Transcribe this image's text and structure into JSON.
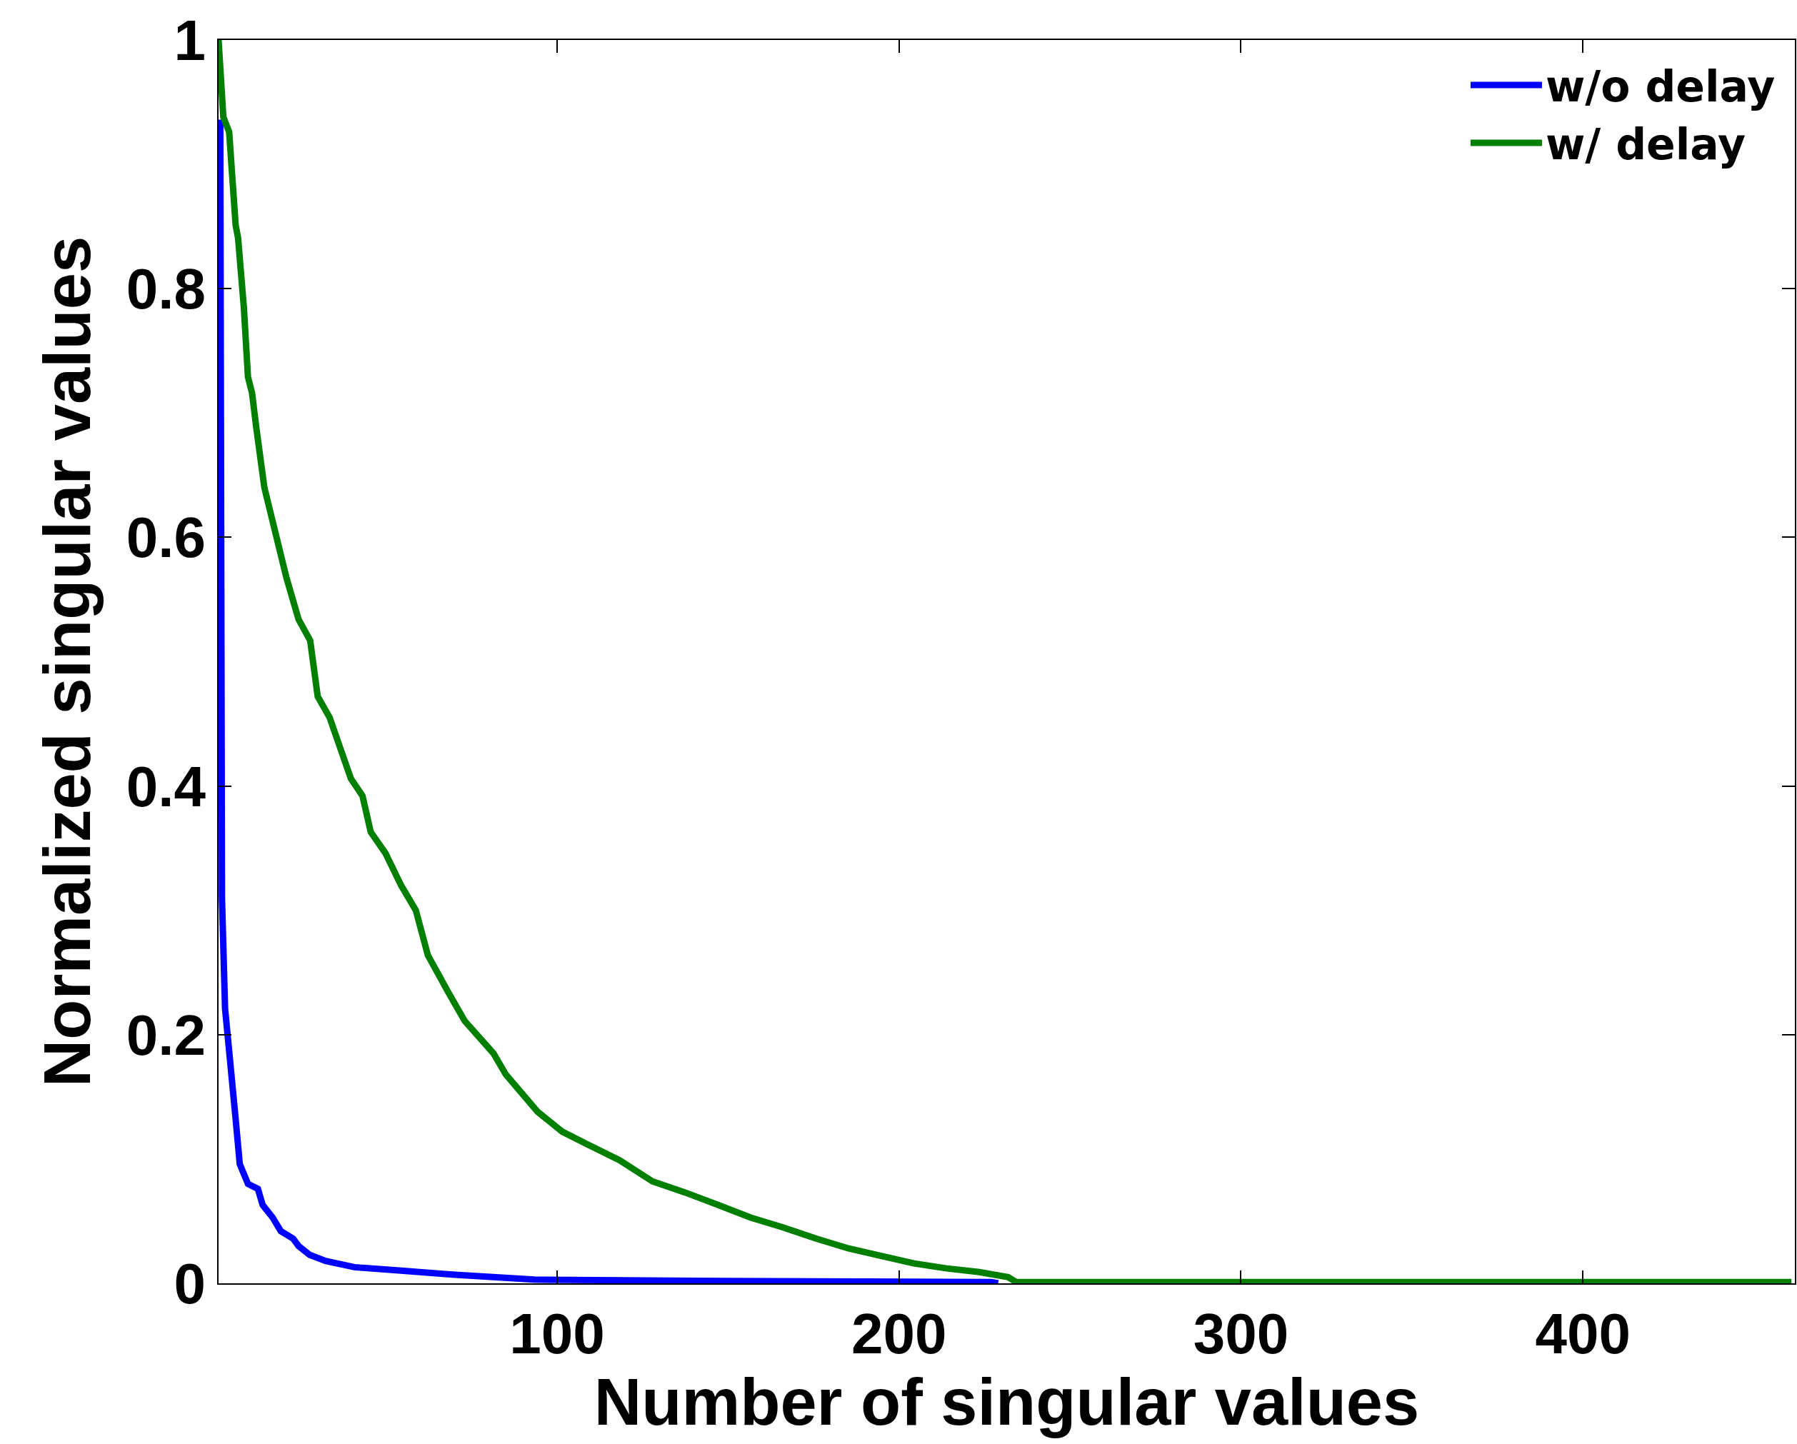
{
  "chart_data": {
    "type": "line",
    "xlabel": "Number of singular values",
    "ylabel": "Normalized singular values",
    "xlim": [
      1,
      462
    ],
    "ylim": [
      0,
      1
    ],
    "xticks": [
      100,
      200,
      300,
      400
    ],
    "yticks": [
      0,
      0.2,
      0.4,
      0.6,
      0.8,
      1
    ],
    "grid": false,
    "legend": "top right",
    "marker": "none",
    "line_style": "solid",
    "series": [
      {
        "name": "w/o delay",
        "color": "#0000ff",
        "x": [
          1.5,
          2,
          2.9,
          4.3,
          6,
          7.2,
          9.6,
          12.5,
          13.9,
          16.8,
          19.2,
          22.8,
          24.4,
          27.6,
          32.3,
          40.7,
          55.1,
          69.4,
          93.3,
          141,
          227,
          229
        ],
        "values": [
          0.936,
          0.31,
          0.221,
          0.181,
          0.132,
          0.096,
          0.08,
          0.076,
          0.063,
          0.053,
          0.042,
          0.036,
          0.03,
          0.023,
          0.018,
          0.013,
          0.01,
          0.007,
          0.003,
          0.002,
          0.001,
          0
        ]
      },
      {
        "name": "w/ delay",
        "color": "#007f00",
        "x": [
          1,
          2.4,
          4.1,
          6,
          6.7,
          8.4,
          9.6,
          10.8,
          12,
          14.4,
          16.8,
          20.9,
          24.4,
          27.8,
          30,
          33.5,
          36.4,
          39.7,
          43.1,
          45.5,
          49.8,
          54.4,
          58.7,
          62.2,
          68.2,
          73,
          81.4,
          85,
          94.3,
          101.5,
          108.7,
          118.3,
          127.9,
          137.5,
          147.1,
          156.5,
          166.1,
          175.7,
          185.3,
          194.8,
          204.4,
          214,
          223.5,
          231.9,
          234.3,
          461
        ],
        "values": [
          1,
          0.938,
          0.926,
          0.851,
          0.841,
          0.785,
          0.729,
          0.716,
          0.689,
          0.64,
          0.613,
          0.567,
          0.534,
          0.517,
          0.472,
          0.455,
          0.432,
          0.406,
          0.392,
          0.363,
          0.346,
          0.32,
          0.3,
          0.264,
          0.234,
          0.211,
          0.185,
          0.168,
          0.138,
          0.122,
          0.112,
          0.099,
          0.082,
          0.073,
          0.063,
          0.053,
          0.045,
          0.036,
          0.028,
          0.022,
          0.016,
          0.012,
          0.009,
          0.005,
          0.001,
          0.001
        ]
      }
    ]
  }
}
